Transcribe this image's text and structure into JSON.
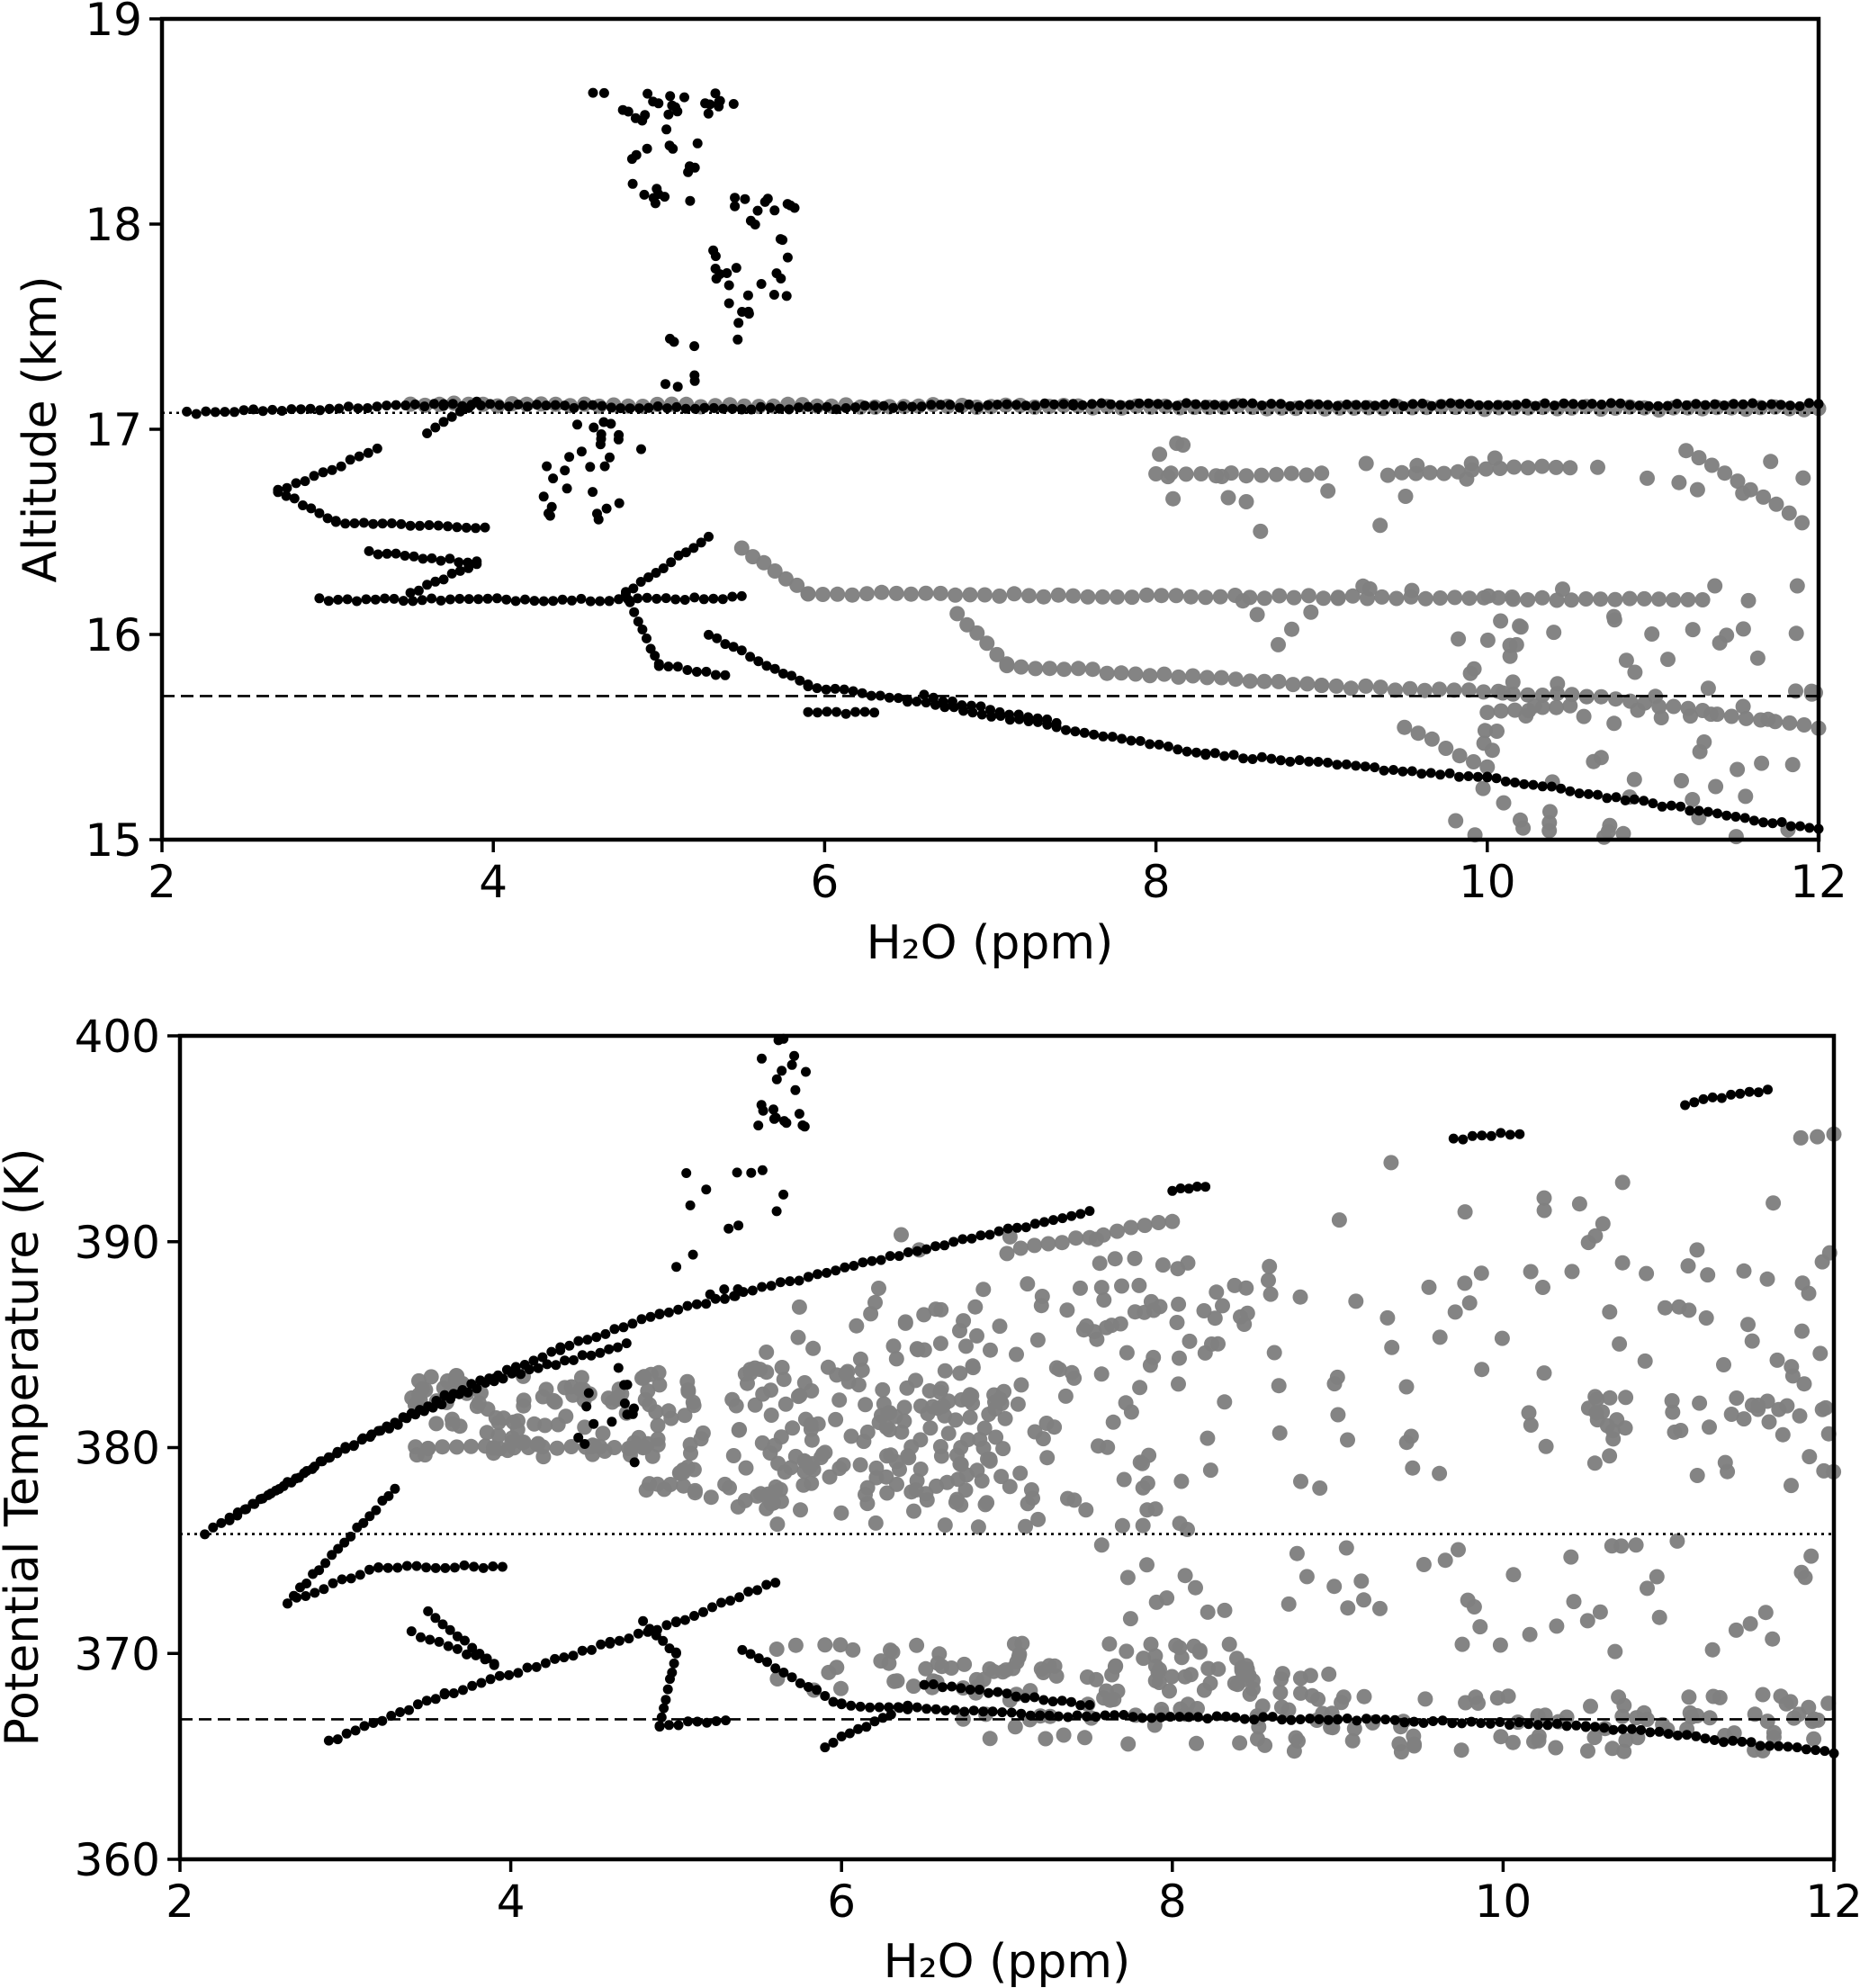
{
  "chart_data": [
    {
      "type": "scatter",
      "xlabel": "H₂O (ppm)",
      "ylabel": "Altitude (km)",
      "xlim": [
        2,
        12
      ],
      "ylim": [
        15,
        19
      ],
      "xticks": [
        "2",
        "4",
        "6",
        "8",
        "10",
        "12"
      ],
      "yticks": [
        "15",
        "16",
        "17",
        "18",
        "19"
      ],
      "reference_lines": [
        {
          "style": "dotted",
          "y": 17.08
        },
        {
          "style": "dashed",
          "y": 15.7
        }
      ],
      "series": [
        {
          "color": "#000000",
          "marker_size": "small",
          "segments": [
            [
              [
                2.15,
                17.08
              ],
              [
                3.7,
                17.12
              ],
              [
                5.5,
                17.1
              ],
              [
                7.5,
                17.12
              ],
              [
                12.0,
                17.12
              ]
            ],
            [
              [
                3.9,
                17.13
              ],
              [
                3.6,
                16.98
              ]
            ],
            [
              [
                3.3,
                16.9
              ],
              [
                2.7,
                16.7
              ],
              [
                3.05,
                16.55
              ],
              [
                3.95,
                16.52
              ]
            ],
            [
              [
                3.25,
                16.4
              ],
              [
                3.9,
                16.35
              ],
              [
                3.5,
                16.2
              ]
            ],
            [
              [
                2.95,
                16.17
              ],
              [
                4.7,
                16.17
              ],
              [
                5.5,
                16.18
              ]
            ],
            [
              [
                5.3,
                16.48
              ],
              [
                4.8,
                16.2
              ],
              [
                5.0,
                15.85
              ],
              [
                5.4,
                15.8
              ]
            ],
            [
              [
                5.3,
                16.0
              ],
              [
                5.9,
                15.75
              ],
              [
                6.5,
                15.68
              ],
              [
                8.3,
                15.42
              ],
              [
                10.0,
                15.3
              ],
              [
                12.0,
                15.05
              ]
            ],
            [
              [
                5.9,
                15.62
              ],
              [
                6.3,
                15.62
              ]
            ],
            [
              [
                7.4,
                15.57
              ],
              [
                6.6,
                15.7
              ]
            ]
          ],
          "clusters": [
            {
              "x": [
                4.6,
                5.5
              ],
              "y": [
                18.5,
                18.65
              ],
              "n": 24
            },
            {
              "x": [
                4.8,
                5.25
              ],
              "y": [
                18.1,
                18.5
              ],
              "n": 18
            },
            {
              "x": [
                5.3,
                5.85
              ],
              "y": [
                17.45,
                18.15
              ],
              "n": 34
            },
            {
              "x": [
                4.9,
                5.5
              ],
              "y": [
                17.2,
                17.45
              ],
              "n": 8
            },
            {
              "x": [
                4.3,
                4.8
              ],
              "y": [
                16.55,
                17.05
              ],
              "n": 22
            },
            {
              "x": [
                4.65,
                4.9
              ],
              "y": [
                16.85,
                17.05
              ],
              "n": 6
            }
          ]
        },
        {
          "color": "#808080",
          "marker_size": "large",
          "segments": [
            [
              [
                3.5,
                17.12
              ],
              [
                12.0,
                17.1
              ]
            ],
            [
              [
                8.0,
                16.78
              ],
              [
                9.0,
                16.78
              ]
            ],
            [
              [
                9.4,
                16.78
              ],
              [
                10.5,
                16.82
              ]
            ],
            [
              [
                11.2,
                16.9
              ],
              [
                11.9,
                16.55
              ]
            ],
            [
              [
                5.5,
                16.42
              ],
              [
                5.9,
                16.2
              ],
              [
                9.1,
                16.18
              ],
              [
                11.3,
                16.17
              ]
            ],
            [
              [
                6.8,
                16.1
              ],
              [
                7.1,
                15.85
              ],
              [
                9.0,
                15.75
              ],
              [
                10.6,
                15.7
              ],
              [
                12.0,
                15.55
              ]
            ],
            [
              [
                9.5,
                15.55
              ],
              [
                10.0,
                15.35
              ]
            ],
            [
              [
                10.0,
                15.62
              ],
              [
                10.5,
                15.65
              ]
            ]
          ],
          "clusters": [
            {
              "x": [
                9.8,
                12.0
              ],
              "y": [
                15.0,
                15.9
              ],
              "n": 60
            },
            {
              "x": [
                8.5,
                12.0
              ],
              "y": [
                15.9,
                16.25
              ],
              "n": 30
            },
            {
              "x": [
                8.0,
                12.0
              ],
              "y": [
                16.5,
                16.95
              ],
              "n": 24
            }
          ]
        }
      ]
    },
    {
      "type": "scatter",
      "xlabel": "H₂O (ppm)",
      "ylabel": "Potential Temperature (K)",
      "xlim": [
        2,
        12
      ],
      "ylim": [
        360,
        400
      ],
      "xticks": [
        "2",
        "4",
        "6",
        "8",
        "10",
        "12"
      ],
      "yticks": [
        "360",
        "370",
        "380",
        "390",
        "400"
      ],
      "reference_lines": [
        {
          "style": "dotted",
          "y": 375.8
        },
        {
          "style": "dashed",
          "y": 366.8
        }
      ],
      "series": [
        {
          "color": "#000000",
          "marker_size": "small",
          "segments": [
            [
              [
                2.15,
                375.8
              ],
              [
                2.9,
                379.5
              ],
              [
                3.6,
                382.5
              ],
              [
                4.3,
                384.8
              ],
              [
                4.9,
                386.5
              ],
              [
                5.8,
                388.3
              ],
              [
                7.5,
                391.5
              ]
            ],
            [
              [
                2.3,
                376.5
              ],
              [
                3.0,
                380.0
              ],
              [
                3.9,
                383.3
              ],
              [
                4.7,
                385.0
              ]
            ],
            [
              [
                3.3,
                378.0
              ],
              [
                2.65,
                372.5
              ],
              [
                3.2,
                374.2
              ],
              [
                3.95,
                374.2
              ]
            ],
            [
              [
                3.4,
                371.0
              ],
              [
                3.9,
                369.5
              ],
              [
                3.5,
                372.0
              ]
            ],
            [
              [
                2.9,
                365.7
              ],
              [
                3.6,
                368.0
              ],
              [
                4.6,
                370.5
              ],
              [
                5.0,
                371.5
              ],
              [
                5.6,
                373.5
              ]
            ],
            [
              [
                4.8,
                371.5
              ],
              [
                5.0,
                370.0
              ],
              [
                4.9,
                366.5
              ],
              [
                5.3,
                366.8
              ]
            ],
            [
              [
                5.4,
                370.2
              ],
              [
                6.0,
                367.5
              ],
              [
                7.2,
                367.0
              ],
              [
                9.0,
                366.8
              ],
              [
                10.5,
                366.5
              ],
              [
                12.0,
                365.2
              ]
            ],
            [
              [
                5.9,
                365.5
              ],
              [
                6.4,
                367.5
              ]
            ],
            [
              [
                6.5,
                368.5
              ],
              [
                7.5,
                367.5
              ]
            ],
            [
              [
                8.0,
                392.5
              ],
              [
                8.2,
                392.7
              ]
            ],
            [
              [
                9.7,
                395.0
              ],
              [
                10.1,
                395.3
              ]
            ],
            [
              [
                11.1,
                396.7
              ],
              [
                11.6,
                397.4
              ]
            ]
          ],
          "clusters": [
            {
              "x": [
                5.45,
                5.8
              ],
              "y": [
                395.0,
                400.0
              ],
              "n": 20
            },
            {
              "x": [
                5.0,
                5.65
              ],
              "y": [
                387.0,
                393.5
              ],
              "n": 16
            },
            {
              "x": [
                4.4,
                4.75
              ],
              "y": [
                379.0,
                384.0
              ],
              "n": 14
            }
          ]
        },
        {
          "color": "#808080",
          "marker_size": "large",
          "segments": [
            [
              [
                3.5,
                380.0
              ],
              [
                4.8,
                380.0
              ]
            ],
            [
              [
                7.0,
                389.5
              ],
              [
                8.0,
                391.0
              ]
            ],
            [
              [
                11.8,
                395.0
              ],
              [
                12.0,
                395.3
              ]
            ]
          ],
          "clusters": [
            {
              "x": [
                3.4,
                4.8
              ],
              "y": [
                379.5,
                383.5
              ],
              "n": 90
            },
            {
              "x": [
                4.8,
                7.0
              ],
              "y": [
                377.0,
                384.0
              ],
              "n": 180
            },
            {
              "x": [
                5.5,
                8.2
              ],
              "y": [
                376.0,
                388.0
              ],
              "n": 130
            },
            {
              "x": [
                6.3,
                8.6
              ],
              "y": [
                384.0,
                390.5
              ],
              "n": 40
            },
            {
              "x": [
                8.2,
                12.0
              ],
              "y": [
                378.0,
                389.0
              ],
              "n": 70
            },
            {
              "x": [
                10.5,
                12.0
              ],
              "y": [
                380.5,
                382.5
              ],
              "n": 30
            },
            {
              "x": [
                5.6,
                8.5
              ],
              "y": [
                368.0,
                370.5
              ],
              "n": 70
            },
            {
              "x": [
                6.6,
                9.0
              ],
              "y": [
                365.5,
                369.5
              ],
              "n": 60
            },
            {
              "x": [
                7.5,
                12.0
              ],
              "y": [
                370.0,
                375.5
              ],
              "n": 50
            },
            {
              "x": [
                8.5,
                12.0
              ],
              "y": [
                365.2,
                368.0
              ],
              "n": 90
            },
            {
              "x": [
                9.0,
                12.0
              ],
              "y": [
                388.0,
                394.0
              ],
              "n": 20
            }
          ]
        }
      ]
    }
  ]
}
